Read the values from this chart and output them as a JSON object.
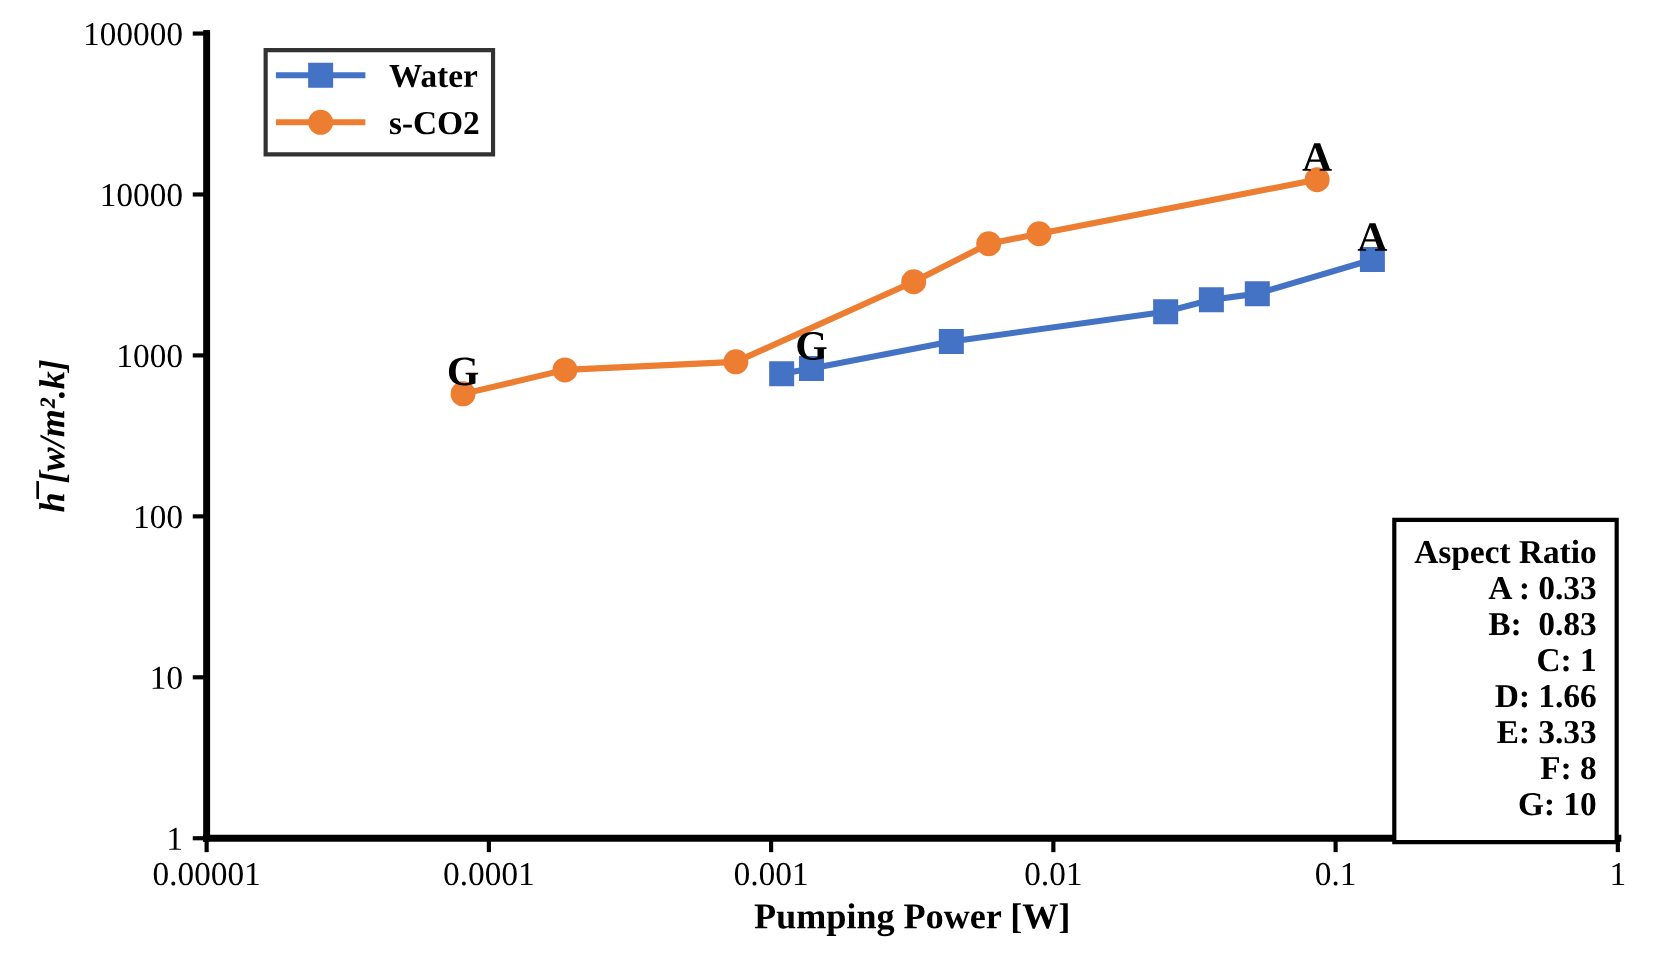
{
  "chart_data": {
    "type": "line",
    "xlabel": "Pumping Power [W]",
    "ylabel": "h̅ [w/m².k]",
    "log": "xy",
    "grid": false,
    "legend": "top left",
    "line_style": "solid",
    "xlim": [
      1e-05,
      1
    ],
    "ylim": [
      1,
      100000
    ],
    "xticks": [
      {
        "value": 1e-05,
        "label": "0.00001"
      },
      {
        "value": 0.0001,
        "label": "0.0001"
      },
      {
        "value": 0.001,
        "label": "0.001"
      },
      {
        "value": 0.01,
        "label": "0.01"
      },
      {
        "value": 0.1,
        "label": "0.1"
      },
      {
        "value": 1,
        "label": "1"
      }
    ],
    "yticks": [
      1,
      10,
      100,
      1000,
      10000,
      100000
    ],
    "series": [
      {
        "name": "Water",
        "color": "#4472c4",
        "marker": "square",
        "x": [
          0.00109,
          0.00139,
          0.00435,
          0.025,
          0.0363,
          0.0528,
          0.135
        ],
        "values": [
          770,
          830,
          1220,
          1870,
          2220,
          2420,
          3940
        ]
      },
      {
        "name": "s-CO2",
        "color": "#ed7d31",
        "marker": "circle",
        "x": [
          8.1e-05,
          0.000186,
          0.00075,
          0.0032,
          0.0059,
          0.0089,
          0.086
        ],
        "values": [
          577,
          813,
          912,
          2870,
          4940,
          5700,
          12360
        ]
      }
    ],
    "annotations": [
      {
        "text": "A",
        "x": 0.086,
        "y": 12360
      },
      {
        "text": "A",
        "x": 0.135,
        "y": 3940
      },
      {
        "text": "G",
        "x": 8.1e-05,
        "y": 577
      },
      {
        "text": "G",
        "x": 0.00139,
        "y": 830
      },
      "Aspect Ratio",
      "A : 0.33",
      "B:  0.83",
      "C: 1",
      "D: 1.66",
      "E: 3.33",
      "F: 8",
      "G: 10"
    ]
  }
}
